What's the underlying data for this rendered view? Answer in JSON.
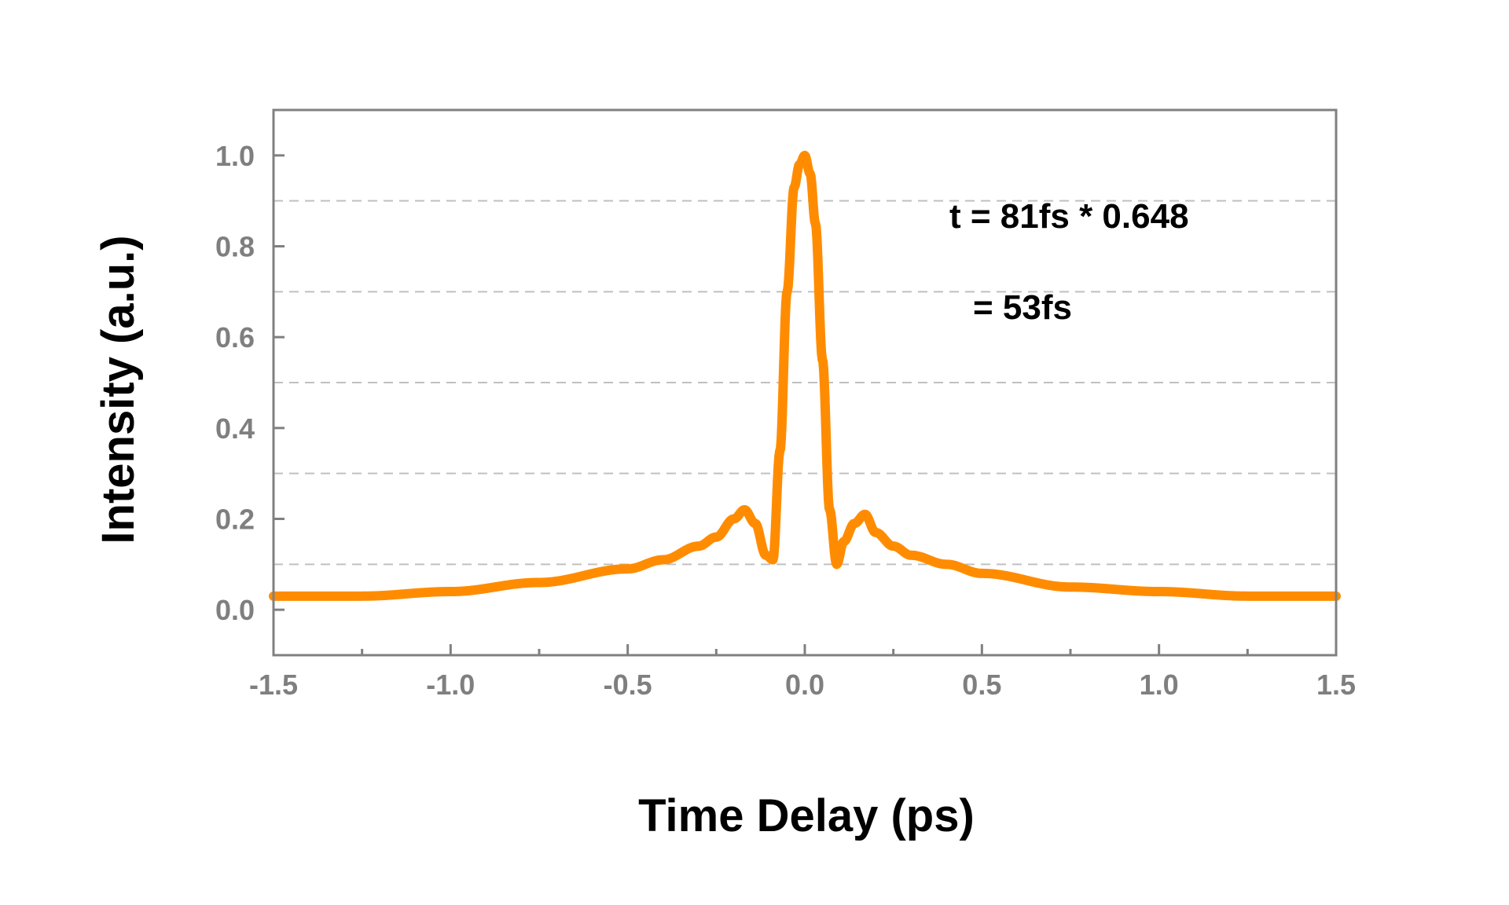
{
  "chart_data": {
    "type": "line",
    "title": "",
    "xlabel": "Time Delay (ps)",
    "ylabel": "Intensity (a.u.)",
    "xlim": [
      -1.5,
      1.5
    ],
    "ylim": [
      -0.1,
      1.1
    ],
    "x_ticks": [
      -1.5,
      -1.0,
      -0.5,
      0.0,
      0.5,
      1.0,
      1.5
    ],
    "x_tick_labels": [
      "-1.5",
      "-1.0",
      "-0.5",
      "0.0",
      "0.5",
      "1.0",
      "1.5"
    ],
    "x_minor_ticks": [
      -1.25,
      -0.75,
      -0.25,
      0.25,
      0.75,
      1.25
    ],
    "y_ticks": [
      0.0,
      0.2,
      0.4,
      0.6,
      0.8,
      1.0
    ],
    "y_tick_labels": [
      "0.0",
      "0.2",
      "0.4",
      "0.6",
      "0.8",
      "1.0"
    ],
    "gridlines_y": [
      0.1,
      0.3,
      0.5,
      0.7,
      0.9
    ],
    "grid": "dashed horizontal",
    "legend": "none",
    "series": [
      {
        "color": "#ff8c00",
        "x": [
          -1.5,
          -1.25,
          -1.0,
          -0.75,
          -0.5,
          -0.4,
          -0.3,
          -0.25,
          -0.2,
          -0.17,
          -0.14,
          -0.11,
          -0.09,
          -0.07,
          -0.05,
          -0.03,
          -0.015,
          0.0,
          0.015,
          0.03,
          0.05,
          0.07,
          0.09,
          0.11,
          0.14,
          0.17,
          0.2,
          0.25,
          0.3,
          0.4,
          0.5,
          0.75,
          1.0,
          1.25,
          1.5
        ],
        "y": [
          0.03,
          0.03,
          0.04,
          0.06,
          0.09,
          0.11,
          0.14,
          0.16,
          0.2,
          0.22,
          0.19,
          0.12,
          0.11,
          0.35,
          0.7,
          0.93,
          0.98,
          1.0,
          0.96,
          0.85,
          0.55,
          0.22,
          0.1,
          0.15,
          0.19,
          0.21,
          0.17,
          0.14,
          0.12,
          0.1,
          0.08,
          0.05,
          0.04,
          0.03,
          0.03
        ]
      }
    ],
    "annotations": [
      "t = 81fs * 0.648",
      "= 53fs"
    ]
  },
  "colors": {
    "line": "#ff8c00",
    "axis": "#808080",
    "grid": "#c0c0c0",
    "tick_label": "#7f7f7f",
    "title_text": "#000000"
  }
}
